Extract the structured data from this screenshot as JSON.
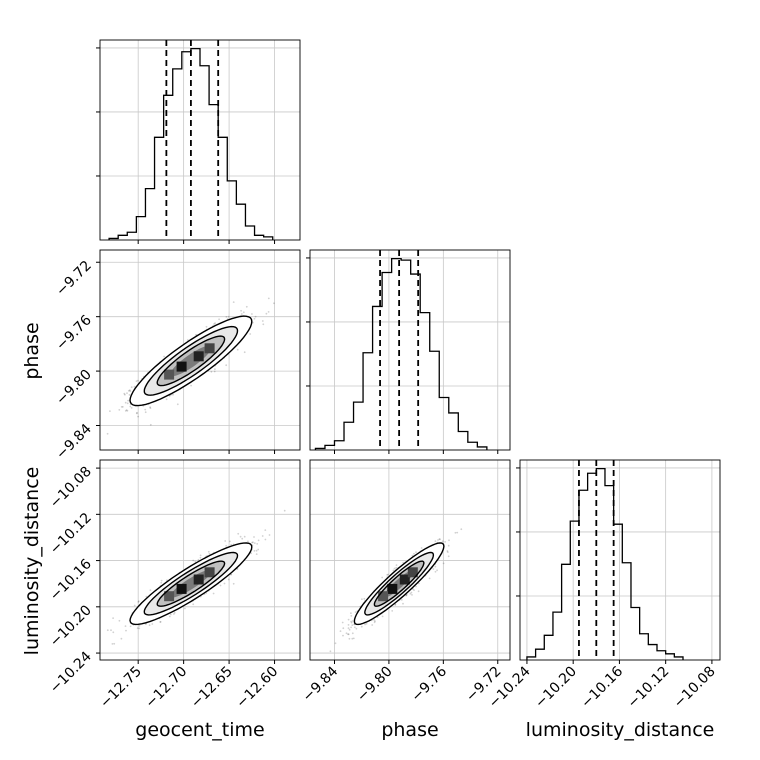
{
  "chart_data": {
    "type": "corner",
    "parameters": [
      "geocent_time",
      "phase",
      "luminosity_distance"
    ],
    "axis_labels": {
      "geocent_time": "geocent_time",
      "phase": "phase",
      "luminosity_distance": "luminosity_distance"
    },
    "ranges": {
      "geocent_time": [
        -12.792,
        -12.572
      ],
      "phase": [
        -9.858,
        -9.711
      ],
      "luminosity_distance": [
        -10.246,
        -10.073
      ]
    },
    "ticks": {
      "geocent_time": [
        {
          "value": -12.75,
          "label": "−12.75"
        },
        {
          "value": -12.7,
          "label": "−12.70"
        },
        {
          "value": -12.65,
          "label": "−12.65"
        },
        {
          "value": -12.6,
          "label": "−12.60"
        }
      ],
      "phase": [
        {
          "value": -9.84,
          "label": "−9.84"
        },
        {
          "value": -9.8,
          "label": "−9.80"
        },
        {
          "value": -9.76,
          "label": "−9.76"
        },
        {
          "value": -9.72,
          "label": "−9.72"
        }
      ],
      "luminosity_distance": [
        {
          "value": -10.24,
          "label": "−10.24"
        },
        {
          "value": -10.2,
          "label": "−10.20"
        },
        {
          "value": -10.16,
          "label": "−10.16"
        },
        {
          "value": -10.12,
          "label": "−10.12"
        },
        {
          "value": -10.08,
          "label": "−10.08"
        }
      ]
    },
    "quantiles": {
      "geocent_time": [
        -12.719,
        -12.692,
        -12.662
      ],
      "phase": [
        -9.8065,
        -9.7925,
        -9.7785
      ],
      "luminosity_distance": [
        -10.195,
        -10.18,
        -10.165
      ]
    },
    "histograms": {
      "geocent_time": {
        "edges_start": -12.782,
        "bin_width": 0.01,
        "counts": [
          1,
          3,
          5,
          15,
          33,
          66,
          93,
          110,
          121,
          123,
          112,
          87,
          66,
          38,
          23,
          9,
          3,
          2
        ]
      },
      "phase": {
        "edges_start": -9.854,
        "bin_width": 0.007,
        "counts": [
          1,
          3,
          6,
          18,
          31,
          63,
          93,
          115,
          124,
          123,
          114,
          89,
          64,
          34,
          24,
          12,
          5,
          2
        ]
      },
      "luminosity_distance": {
        "edges_start": -10.24,
        "bin_width": 0.0075,
        "counts": [
          2,
          7,
          16,
          31,
          62,
          90,
          110,
          121,
          124,
          113,
          88,
          63,
          34,
          17,
          10,
          6,
          4,
          2
        ]
      }
    },
    "pairs": [
      {
        "x": "geocent_time",
        "y": "phase",
        "correlation": 0.88
      },
      {
        "x": "geocent_time",
        "y": "luminosity_distance",
        "correlation": 0.9
      },
      {
        "x": "phase",
        "y": "luminosity_distance",
        "correlation": 0.92
      }
    ],
    "grid": true
  }
}
